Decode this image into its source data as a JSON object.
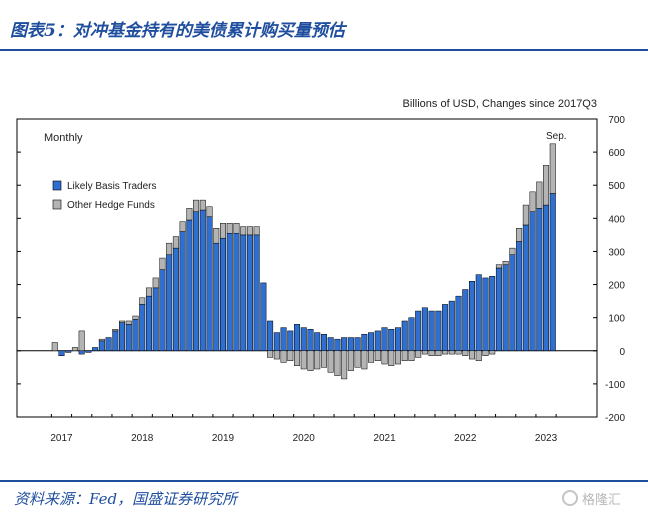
{
  "header": {
    "title": "图表5：对冲基金持有的美债累计购买量预估"
  },
  "footer": {
    "source": "资料来源：Fed，国盛证券研究所",
    "watermark": "格隆汇"
  },
  "chart_data": {
    "type": "bar",
    "stacked": true,
    "title": "",
    "unit_note": "Billions of USD, Changes since 2017Q3",
    "frequency_label": "Monthly",
    "annotation": "Sep.",
    "ylim": [
      -200,
      700
    ],
    "y_ticks": [
      -200,
      -100,
      0,
      100,
      200,
      300,
      400,
      500,
      600,
      700
    ],
    "y_axis_side": "right",
    "x_labels": [
      "2017",
      "2018",
      "2019",
      "2020",
      "2021",
      "2022",
      "2023"
    ],
    "x_label_positions": [
      1,
      13,
      25,
      37,
      49,
      61,
      73
    ],
    "legend_position": "top-left",
    "colors": {
      "likely_basis_traders": "#2f6fd0",
      "other_hedge_funds": "#b4b4b4"
    },
    "series": [
      {
        "name": "Likely Basis Traders",
        "values": [
          0,
          -15,
          -5,
          0,
          -10,
          -5,
          10,
          30,
          40,
          60,
          85,
          80,
          95,
          140,
          165,
          190,
          245,
          290,
          310,
          360,
          395,
          420,
          425,
          405,
          325,
          340,
          355,
          355,
          350,
          350,
          350,
          205,
          90,
          55,
          70,
          60,
          80,
          70,
          65,
          55,
          50,
          40,
          35,
          40,
          40,
          40,
          50,
          55,
          60,
          70,
          65,
          70,
          90,
          100,
          120,
          130,
          120,
          120,
          140,
          150,
          165,
          185,
          210,
          230,
          220,
          225,
          250,
          260,
          290,
          330,
          380,
          420,
          430,
          440,
          475
        ]
      },
      {
        "name": "Other Hedge Funds",
        "values": [
          25,
          0,
          0,
          10,
          60,
          0,
          0,
          5,
          0,
          5,
          5,
          10,
          10,
          20,
          25,
          30,
          35,
          35,
          35,
          30,
          35,
          35,
          30,
          30,
          45,
          45,
          30,
          30,
          25,
          25,
          25,
          0,
          -20,
          -25,
          -35,
          -30,
          -45,
          -55,
          -60,
          -55,
          -50,
          -65,
          -75,
          -85,
          -60,
          -50,
          -55,
          -35,
          -30,
          -40,
          -45,
          -40,
          -30,
          -30,
          -20,
          -10,
          -15,
          -15,
          -10,
          -10,
          -10,
          -15,
          -25,
          -30,
          -15,
          -10,
          10,
          10,
          20,
          40,
          60,
          60,
          80,
          120,
          150
        ]
      }
    ]
  }
}
